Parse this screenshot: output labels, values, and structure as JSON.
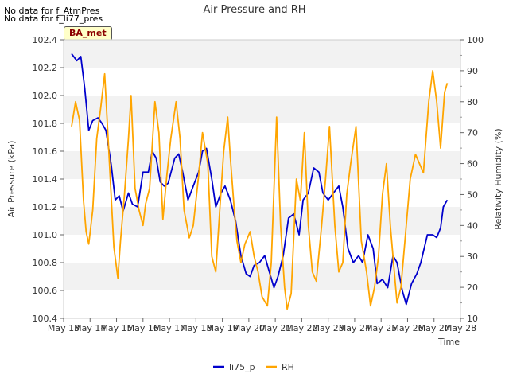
{
  "notes": [
    "No data for f_AtmPres",
    "No data for f_li77_pres"
  ],
  "badge": "BA_met",
  "chart_data": {
    "type": "line",
    "title": "Air Pressure and RH",
    "xlabel": "Time",
    "ylabel_left": "Air Pressure (kPa)",
    "ylabel_right": "Relativity Humidity (%)",
    "x_ticks": [
      "May 13",
      "May 14",
      "May 15",
      "May 16",
      "May 17",
      "May 18",
      "May 19",
      "May 20",
      "May 21",
      "May 22",
      "May 23",
      "May 24",
      "May 25",
      "May 26",
      "May 27",
      "May 28"
    ],
    "xlim": [
      13,
      28
    ],
    "ylim_left": [
      100.4,
      102.4
    ],
    "ylim_right": [
      10,
      100
    ],
    "yticks_left": [
      "100.4",
      "100.6",
      "100.8",
      "101.0",
      "101.2",
      "101.4",
      "101.6",
      "101.8",
      "102.0",
      "102.2",
      "102.4"
    ],
    "yticks_right": [
      "10",
      "20",
      "30",
      "40",
      "50",
      "60",
      "70",
      "80",
      "90",
      "100"
    ],
    "grid": "horizontal bands",
    "legend_position": "bottom-center",
    "series": [
      {
        "name": "li75_p",
        "axis": "left",
        "color": "#0000cc",
        "x": [
          13.3,
          13.5,
          13.65,
          13.8,
          13.95,
          14.1,
          14.3,
          14.45,
          14.6,
          14.8,
          14.95,
          15.1,
          15.25,
          15.45,
          15.6,
          15.8,
          16.0,
          16.2,
          16.35,
          16.5,
          16.65,
          16.8,
          16.95,
          17.2,
          17.35,
          17.5,
          17.7,
          17.9,
          18.1,
          18.25,
          18.4,
          18.6,
          18.75,
          18.95,
          19.1,
          19.3,
          19.5,
          19.7,
          19.9,
          20.05,
          20.2,
          20.4,
          20.6,
          20.75,
          20.95,
          21.1,
          21.3,
          21.5,
          21.7,
          21.9,
          22.05,
          22.25,
          22.45,
          22.65,
          22.8,
          23.0,
          23.2,
          23.4,
          23.55,
          23.75,
          23.95,
          24.15,
          24.3,
          24.5,
          24.7,
          24.85,
          25.05,
          25.25,
          25.45,
          25.6,
          25.8,
          25.95,
          26.15,
          26.35,
          26.5,
          26.75,
          26.95,
          27.1,
          27.25,
          27.35,
          27.5
        ],
        "y": [
          102.3,
          102.25,
          102.28,
          102.05,
          101.75,
          101.82,
          101.84,
          101.8,
          101.75,
          101.5,
          101.25,
          101.28,
          101.17,
          101.3,
          101.22,
          101.2,
          101.45,
          101.45,
          101.6,
          101.55,
          101.38,
          101.35,
          101.37,
          101.55,
          101.58,
          101.45,
          101.25,
          101.35,
          101.45,
          101.6,
          101.62,
          101.4,
          101.2,
          101.3,
          101.35,
          101.25,
          101.1,
          100.85,
          100.72,
          100.7,
          100.78,
          100.8,
          100.85,
          100.75,
          100.62,
          100.7,
          100.85,
          101.12,
          101.15,
          101.0,
          101.25,
          101.3,
          101.48,
          101.45,
          101.3,
          101.25,
          101.3,
          101.35,
          101.2,
          100.9,
          100.8,
          100.85,
          100.8,
          101.0,
          100.9,
          100.65,
          100.68,
          100.62,
          100.85,
          100.8,
          100.6,
          100.5,
          100.65,
          100.72,
          100.8,
          101.0,
          101.0,
          100.98,
          101.05,
          101.2,
          101.25
        ]
      },
      {
        "name": "RH",
        "axis": "right",
        "color": "#ffa500",
        "x": [
          13.3,
          13.45,
          13.6,
          13.75,
          13.85,
          13.95,
          14.1,
          14.25,
          14.4,
          14.55,
          14.7,
          14.9,
          15.05,
          15.15,
          15.3,
          15.45,
          15.55,
          15.7,
          15.85,
          16.0,
          16.1,
          16.25,
          16.45,
          16.6,
          16.75,
          16.9,
          17.05,
          17.25,
          17.4,
          17.55,
          17.75,
          17.9,
          18.1,
          18.25,
          18.45,
          18.6,
          18.75,
          18.9,
          19.05,
          19.2,
          19.3,
          19.45,
          19.55,
          19.7,
          19.85,
          20.05,
          20.2,
          20.35,
          20.5,
          20.7,
          20.85,
          21.05,
          21.2,
          21.35,
          21.45,
          21.6,
          21.8,
          21.95,
          22.1,
          22.25,
          22.4,
          22.55,
          22.75,
          22.9,
          23.05,
          23.25,
          23.4,
          23.55,
          23.7,
          23.85,
          24.05,
          24.25,
          24.45,
          24.6,
          24.75,
          24.9,
          25.05,
          25.2,
          25.35,
          25.5,
          25.6,
          25.75,
          25.95,
          26.1,
          26.3,
          26.45,
          26.6,
          26.8,
          26.95,
          27.1,
          27.25,
          27.4,
          27.5
        ],
        "y": [
          72,
          80,
          74,
          48,
          38,
          34,
          45,
          68,
          78,
          89,
          65,
          33,
          23,
          35,
          50,
          68,
          82,
          52,
          45,
          40,
          47,
          52,
          80,
          70,
          42,
          56,
          68,
          80,
          68,
          45,
          36,
          40,
          56,
          70,
          60,
          30,
          25,
          45,
          64,
          75,
          62,
          45,
          35,
          28,
          34,
          38,
          30,
          25,
          17,
          14,
          28,
          75,
          40,
          20,
          13,
          18,
          55,
          48,
          70,
          40,
          25,
          22,
          40,
          55,
          72,
          40,
          25,
          28,
          50,
          60,
          72,
          35,
          25,
          14,
          20,
          30,
          50,
          60,
          40,
          25,
          15,
          20,
          40,
          55,
          63,
          60,
          57,
          80,
          90,
          80,
          65,
          83,
          86
        ]
      }
    ]
  }
}
